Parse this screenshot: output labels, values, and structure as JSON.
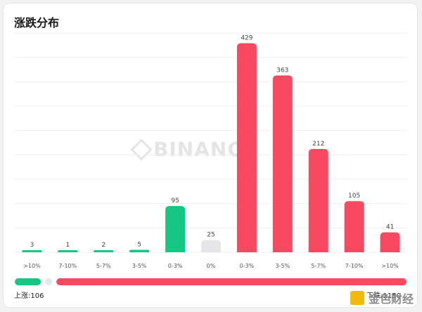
{
  "title": "涨跌分布",
  "watermark": "BINANCE",
  "source_logo": "金色财经",
  "colors": {
    "up": "#16c784",
    "flat": "#e6e6e9",
    "down": "#f84960"
  },
  "summary": {
    "up_label": "上涨:106",
    "down_label": "下跌:1150",
    "up_fraction": 0.081
  },
  "chart_data": {
    "type": "bar",
    "categories": [
      ">10%",
      "7-10%",
      "5-7%",
      "3-5%",
      "0-3%",
      "0%",
      "0-3%",
      "3-5%",
      "5-7%",
      "7-10%",
      ">10%"
    ],
    "values": [
      3,
      1,
      2,
      5,
      95,
      25,
      429,
      363,
      212,
      105,
      41
    ],
    "bar_colors": [
      "up",
      "up",
      "up",
      "up",
      "up",
      "flat",
      "down",
      "down",
      "down",
      "down",
      "down"
    ],
    "title": "涨跌分布",
    "xlabel": "",
    "ylabel": "",
    "ylim": [
      0,
      450
    ],
    "grid": true
  }
}
